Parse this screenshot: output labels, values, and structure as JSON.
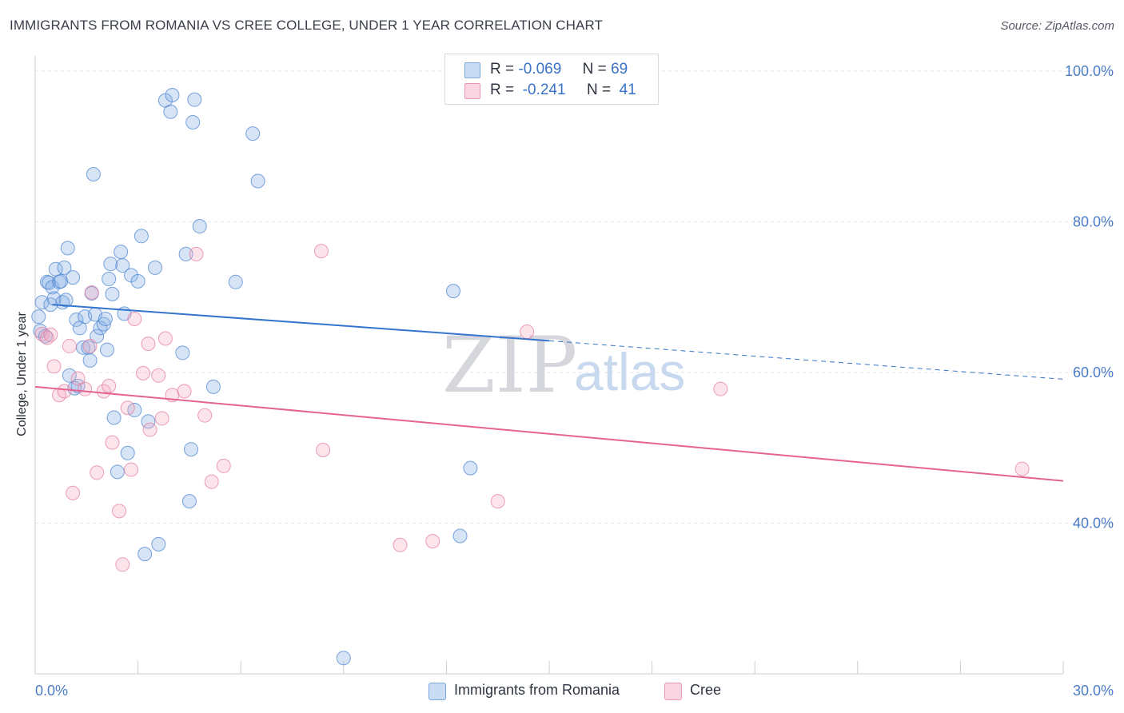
{
  "header": {
    "title": "IMMIGRANTS FROM ROMANIA VS CREE COLLEGE, UNDER 1 YEAR CORRELATION CHART",
    "source": "Source: ZipAtlas.com"
  },
  "watermark": {
    "zip": "ZIP",
    "atlas": "atlas"
  },
  "stats": {
    "rows": [
      {
        "r_label": "R =",
        "r_value": "-0.069",
        "n_label": "N =",
        "n_value": "69",
        "color": "#7aa6e0"
      },
      {
        "r_label": "R =",
        "r_value": "-0.241",
        "n_label": "N =",
        "n_value": "41",
        "color": "#ef94b1"
      }
    ]
  },
  "legend": {
    "items": [
      {
        "label": "Immigrants from Romania",
        "color": "#7aa6e0"
      },
      {
        "label": "Cree",
        "color": "#ef94b1"
      }
    ]
  },
  "colors": {
    "blue_fill": "rgba(138,178,230,0.35)",
    "blue_stroke": "#4f86d2",
    "blue_line": "#3474cc",
    "pink_fill": "rgba(244,164,190,0.30)",
    "pink_stroke": "#e57fa0",
    "pink_line": "#e4648f",
    "grid": "#e2e4e8",
    "axis": "#c9ccd2"
  },
  "chart_data": {
    "type": "scatter",
    "title": "IMMIGRANTS FROM ROMANIA VS CREE COLLEGE, UNDER 1 YEAR CORRELATION CHART",
    "xlabel": "",
    "ylabel": "College, Under 1 year",
    "xlim": [
      0,
      30
    ],
    "ylim": [
      20,
      102
    ],
    "x_tick_labels": [
      "0.0%",
      "30.0%"
    ],
    "y_ticks": [
      40,
      60,
      80,
      100
    ],
    "y_tick_labels": [
      "40.0%",
      "60.0%",
      "80.0%",
      "100.0%"
    ],
    "grid": true,
    "legend_position": "bottom-center",
    "series": [
      {
        "name": "Immigrants from Romania",
        "r": -0.069,
        "n": 69,
        "trend": {
          "x_start": 0.5,
          "y_start": 69.0,
          "x_solid_end": 15.0,
          "y_solid_end": 64.2,
          "x_end": 30.0,
          "y_end": 59.1
        },
        "points": [
          [
            0.1,
            67.4
          ],
          [
            0.15,
            65.5
          ],
          [
            0.2,
            69.3
          ],
          [
            0.3,
            64.8
          ],
          [
            0.35,
            72.0
          ],
          [
            0.4,
            71.9
          ],
          [
            0.45,
            69.0
          ],
          [
            0.5,
            71.3
          ],
          [
            0.55,
            69.8
          ],
          [
            0.6,
            73.7
          ],
          [
            0.7,
            72.0
          ],
          [
            0.75,
            72.1
          ],
          [
            0.8,
            69.3
          ],
          [
            0.85,
            73.9
          ],
          [
            0.9,
            69.6
          ],
          [
            0.95,
            76.5
          ],
          [
            1.0,
            59.6
          ],
          [
            1.1,
            72.6
          ],
          [
            1.15,
            57.9
          ],
          [
            1.2,
            67.0
          ],
          [
            1.3,
            65.9
          ],
          [
            1.4,
            63.3
          ],
          [
            1.45,
            67.4
          ],
          [
            1.55,
            63.3
          ],
          [
            1.6,
            61.6
          ],
          [
            1.65,
            70.5
          ],
          [
            1.7,
            86.3
          ],
          [
            1.75,
            67.7
          ],
          [
            1.8,
            64.8
          ],
          [
            1.9,
            65.9
          ],
          [
            2.0,
            66.4
          ],
          [
            2.05,
            67.1
          ],
          [
            2.1,
            63.0
          ],
          [
            2.15,
            72.4
          ],
          [
            2.2,
            74.4
          ],
          [
            2.25,
            70.4
          ],
          [
            2.3,
            54.0
          ],
          [
            2.4,
            46.8
          ],
          [
            2.5,
            76.0
          ],
          [
            2.55,
            74.2
          ],
          [
            2.6,
            67.8
          ],
          [
            2.7,
            49.3
          ],
          [
            2.8,
            72.9
          ],
          [
            2.9,
            55.0
          ],
          [
            3.0,
            72.1
          ],
          [
            3.1,
            78.1
          ],
          [
            3.2,
            35.9
          ],
          [
            3.3,
            53.5
          ],
          [
            3.5,
            73.9
          ],
          [
            3.6,
            37.2
          ],
          [
            3.8,
            96.1
          ],
          [
            3.95,
            94.6
          ],
          [
            4.0,
            96.8
          ],
          [
            4.3,
            62.6
          ],
          [
            4.4,
            75.7
          ],
          [
            4.5,
            42.9
          ],
          [
            4.55,
            49.8
          ],
          [
            4.6,
            93.2
          ],
          [
            4.65,
            96.2
          ],
          [
            4.8,
            79.4
          ],
          [
            5.2,
            58.1
          ],
          [
            5.85,
            72.0
          ],
          [
            6.35,
            91.7
          ],
          [
            6.5,
            85.4
          ],
          [
            9.0,
            22.1
          ],
          [
            12.2,
            70.8
          ],
          [
            12.4,
            38.3
          ],
          [
            12.7,
            47.3
          ],
          [
            1.25,
            58.2
          ]
        ]
      },
      {
        "name": "Cree",
        "r": -0.241,
        "n": 41,
        "trend": {
          "x_start": 0.0,
          "y_start": 58.1,
          "x_end": 30.0,
          "y_end": 45.6
        },
        "points": [
          [
            0.2,
            65.1
          ],
          [
            0.35,
            64.6
          ],
          [
            0.45,
            65.0
          ],
          [
            0.55,
            60.8
          ],
          [
            0.7,
            57.0
          ],
          [
            0.85,
            57.5
          ],
          [
            1.0,
            63.5
          ],
          [
            1.1,
            44.0
          ],
          [
            1.25,
            59.2
          ],
          [
            1.45,
            57.8
          ],
          [
            1.6,
            63.5
          ],
          [
            1.65,
            70.6
          ],
          [
            1.8,
            46.7
          ],
          [
            2.0,
            57.5
          ],
          [
            2.15,
            58.2
          ],
          [
            2.25,
            50.7
          ],
          [
            2.45,
            41.6
          ],
          [
            2.55,
            34.5
          ],
          [
            2.7,
            55.3
          ],
          [
            2.8,
            47.1
          ],
          [
            2.9,
            67.1
          ],
          [
            3.15,
            59.9
          ],
          [
            3.3,
            63.8
          ],
          [
            3.35,
            52.4
          ],
          [
            3.6,
            59.6
          ],
          [
            3.7,
            53.9
          ],
          [
            3.8,
            64.5
          ],
          [
            4.0,
            57.0
          ],
          [
            4.35,
            57.5
          ],
          [
            4.7,
            75.7
          ],
          [
            4.95,
            54.3
          ],
          [
            5.15,
            45.5
          ],
          [
            5.5,
            47.6
          ],
          [
            8.35,
            76.1
          ],
          [
            8.4,
            49.7
          ],
          [
            10.65,
            37.1
          ],
          [
            11.6,
            37.6
          ],
          [
            13.5,
            42.9
          ],
          [
            14.35,
            65.4
          ],
          [
            20.0,
            57.8
          ],
          [
            28.8,
            47.2
          ]
        ]
      }
    ]
  }
}
